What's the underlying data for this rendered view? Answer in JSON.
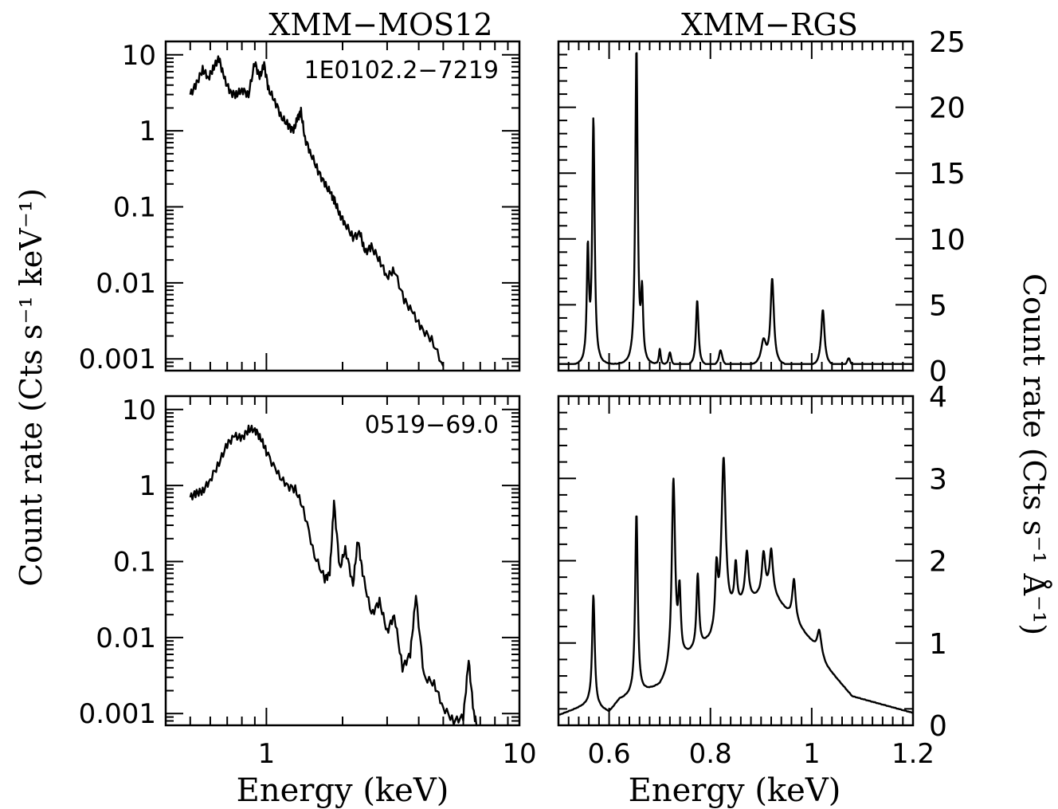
{
  "figure": {
    "left_panel_title": "XMM−MOS12",
    "right_panel_title": "XMM−RGS",
    "left_ylabel": "Count rate (Cts s⁻¹ keV⁻¹)",
    "right_ylabel": "Count rate (Cts s⁻¹ Å⁻¹)",
    "left_xlabel": "Energy (keV)",
    "right_xlabel": "Energy (keV)"
  },
  "chart_data": [
    {
      "id": "mos_top",
      "type": "line",
      "title": "XMM−MOS12",
      "annotation": "1E0102.2−7219",
      "xlabel": "",
      "ylabel": "Count rate (Cts s⁻¹ keV⁻¹)",
      "xscale": "log",
      "yscale": "log",
      "xlim": [
        0.4,
        10
      ],
      "ylim": [
        0.0007,
        15
      ],
      "x_ticks": [],
      "y_ticks": [
        10,
        1,
        0.1,
        0.01,
        0.001
      ],
      "y_tick_labels": [
        "10",
        "1",
        "0.1",
        "0.01",
        "0.001"
      ],
      "x": [
        0.5,
        0.53,
        0.56,
        0.59,
        0.62,
        0.65,
        0.68,
        0.72,
        0.76,
        0.8,
        0.85,
        0.9,
        0.94,
        0.98,
        1.02,
        1.08,
        1.15,
        1.22,
        1.28,
        1.33,
        1.37,
        1.42,
        1.5,
        1.6,
        1.7,
        1.8,
        1.86,
        1.95,
        2.05,
        2.2,
        2.35,
        2.45,
        2.6,
        2.8,
        3.0,
        3.2,
        3.5,
        3.8,
        4.1,
        4.5,
        5.0
      ],
      "values": [
        3.0,
        4.2,
        6.5,
        5.0,
        7.0,
        9.0,
        5.0,
        3.2,
        3.0,
        3.5,
        3.0,
        8.0,
        5.0,
        7.5,
        3.5,
        2.5,
        1.5,
        1.2,
        1.0,
        1.5,
        1.8,
        0.8,
        0.5,
        0.3,
        0.2,
        0.15,
        0.12,
        0.08,
        0.06,
        0.04,
        0.045,
        0.025,
        0.03,
        0.02,
        0.012,
        0.015,
        0.006,
        0.004,
        0.0025,
        0.0018,
        0.0008
      ]
    },
    {
      "id": "rgs_top",
      "type": "line",
      "title": "XMM−RGS",
      "xlabel": "",
      "ylabel": "Count rate (Cts s⁻¹ Å⁻¹)",
      "xscale": "linear",
      "yscale": "linear",
      "xlim": [
        0.5,
        1.2
      ],
      "ylim": [
        0,
        25
      ],
      "x_ticks": [],
      "y_ticks": [
        0,
        5,
        10,
        15,
        20,
        25
      ],
      "y_tick_labels": [
        "0",
        "5",
        "10",
        "15",
        "20",
        "25"
      ],
      "baseline": 0.3,
      "lines": [
        {
          "x": 0.558,
          "height": 8.5,
          "width": 0.0025
        },
        {
          "x": 0.569,
          "height": 18.5,
          "width": 0.0028
        },
        {
          "x": 0.654,
          "height": 24.0,
          "width": 0.0028
        },
        {
          "x": 0.665,
          "height": 5.0,
          "width": 0.0025
        },
        {
          "x": 0.7,
          "height": 1.2,
          "width": 0.002
        },
        {
          "x": 0.72,
          "height": 1.0,
          "width": 0.003
        },
        {
          "x": 0.774,
          "height": 5.0,
          "width": 0.003
        },
        {
          "x": 0.82,
          "height": 1.2,
          "width": 0.004
        },
        {
          "x": 0.905,
          "height": 1.8,
          "width": 0.006
        },
        {
          "x": 0.922,
          "height": 6.5,
          "width": 0.004
        },
        {
          "x": 1.022,
          "height": 4.3,
          "width": 0.004
        },
        {
          "x": 1.073,
          "height": 0.6,
          "width": 0.004
        }
      ]
    },
    {
      "id": "mos_bottom",
      "type": "line",
      "annotation": "0519−69.0",
      "xlabel": "Energy (keV)",
      "ylabel": "Count rate (Cts s⁻¹ keV⁻¹)",
      "xscale": "log",
      "yscale": "log",
      "xlim": [
        0.4,
        10
      ],
      "ylim": [
        0.0007,
        15
      ],
      "x_ticks": [
        1,
        10
      ],
      "x_tick_labels": [
        "1",
        "10"
      ],
      "y_ticks": [
        10,
        1,
        0.1,
        0.01,
        0.001
      ],
      "y_tick_labels": [
        "10",
        "1",
        "0.1",
        "0.01",
        "0.001"
      ],
      "x": [
        0.5,
        0.53,
        0.56,
        0.6,
        0.65,
        0.7,
        0.75,
        0.8,
        0.85,
        0.9,
        0.95,
        1.0,
        1.1,
        1.2,
        1.3,
        1.4,
        1.55,
        1.7,
        1.78,
        1.85,
        1.95,
        2.05,
        2.2,
        2.3,
        2.4,
        2.6,
        2.8,
        3.0,
        3.2,
        3.45,
        3.7,
        3.9,
        4.2,
        4.6,
        5.0,
        5.5,
        6.0,
        6.3,
        6.6,
        6.8
      ],
      "values": [
        0.7,
        0.8,
        0.85,
        1.2,
        2.0,
        3.5,
        4.5,
        4.2,
        5.5,
        5.5,
        4.2,
        2.8,
        1.5,
        1.0,
        0.9,
        0.5,
        0.12,
        0.06,
        0.07,
        0.6,
        0.08,
        0.15,
        0.05,
        0.2,
        0.07,
        0.02,
        0.03,
        0.012,
        0.02,
        0.004,
        0.006,
        0.035,
        0.003,
        0.0025,
        0.0012,
        0.0008,
        0.0009,
        0.005,
        0.001,
        0.0007
      ]
    },
    {
      "id": "rgs_bottom",
      "type": "line",
      "xlabel": "Energy (keV)",
      "ylabel": "Count rate (Cts s⁻¹ Å⁻¹)",
      "xscale": "linear",
      "yscale": "linear",
      "xlim": [
        0.5,
        1.2
      ],
      "ylim": [
        0,
        4
      ],
      "x_ticks": [
        0.6,
        0.8,
        1.0,
        1.2
      ],
      "x_tick_labels": [
        "0.6",
        "0.8",
        "1",
        "1.2"
      ],
      "y_ticks": [
        0,
        1,
        2,
        3,
        4
      ],
      "y_tick_labels": [
        "0",
        "1",
        "2",
        "3",
        "4"
      ],
      "baseline": 0.15,
      "continuum": [
        [
          0.5,
          0.12
        ],
        [
          0.56,
          0.25
        ],
        [
          0.6,
          0.15
        ],
        [
          0.62,
          0.3
        ],
        [
          0.7,
          0.45
        ],
        [
          0.75,
          0.8
        ],
        [
          0.8,
          1.0
        ],
        [
          0.85,
          1.4
        ],
        [
          0.88,
          1.5
        ],
        [
          0.92,
          1.6
        ],
        [
          0.96,
          1.3
        ],
        [
          1.0,
          1.0
        ],
        [
          1.03,
          0.7
        ],
        [
          1.08,
          0.35
        ],
        [
          1.2,
          0.15
        ]
      ],
      "lines": [
        {
          "x": 0.569,
          "height": 1.35,
          "width": 0.003
        },
        {
          "x": 0.654,
          "height": 2.2,
          "width": 0.003
        },
        {
          "x": 0.727,
          "height": 2.3,
          "width": 0.004
        },
        {
          "x": 0.739,
          "height": 0.8,
          "width": 0.003
        },
        {
          "x": 0.775,
          "height": 0.9,
          "width": 0.003
        },
        {
          "x": 0.812,
          "height": 0.7,
          "width": 0.003
        },
        {
          "x": 0.826,
          "height": 2.0,
          "width": 0.005
        },
        {
          "x": 0.85,
          "height": 0.5,
          "width": 0.003
        },
        {
          "x": 0.872,
          "height": 0.6,
          "width": 0.004
        },
        {
          "x": 0.905,
          "height": 0.5,
          "width": 0.004
        },
        {
          "x": 0.92,
          "height": 0.5,
          "width": 0.004
        },
        {
          "x": 0.965,
          "height": 0.5,
          "width": 0.004
        },
        {
          "x": 1.015,
          "height": 0.3,
          "width": 0.005
        }
      ]
    }
  ]
}
